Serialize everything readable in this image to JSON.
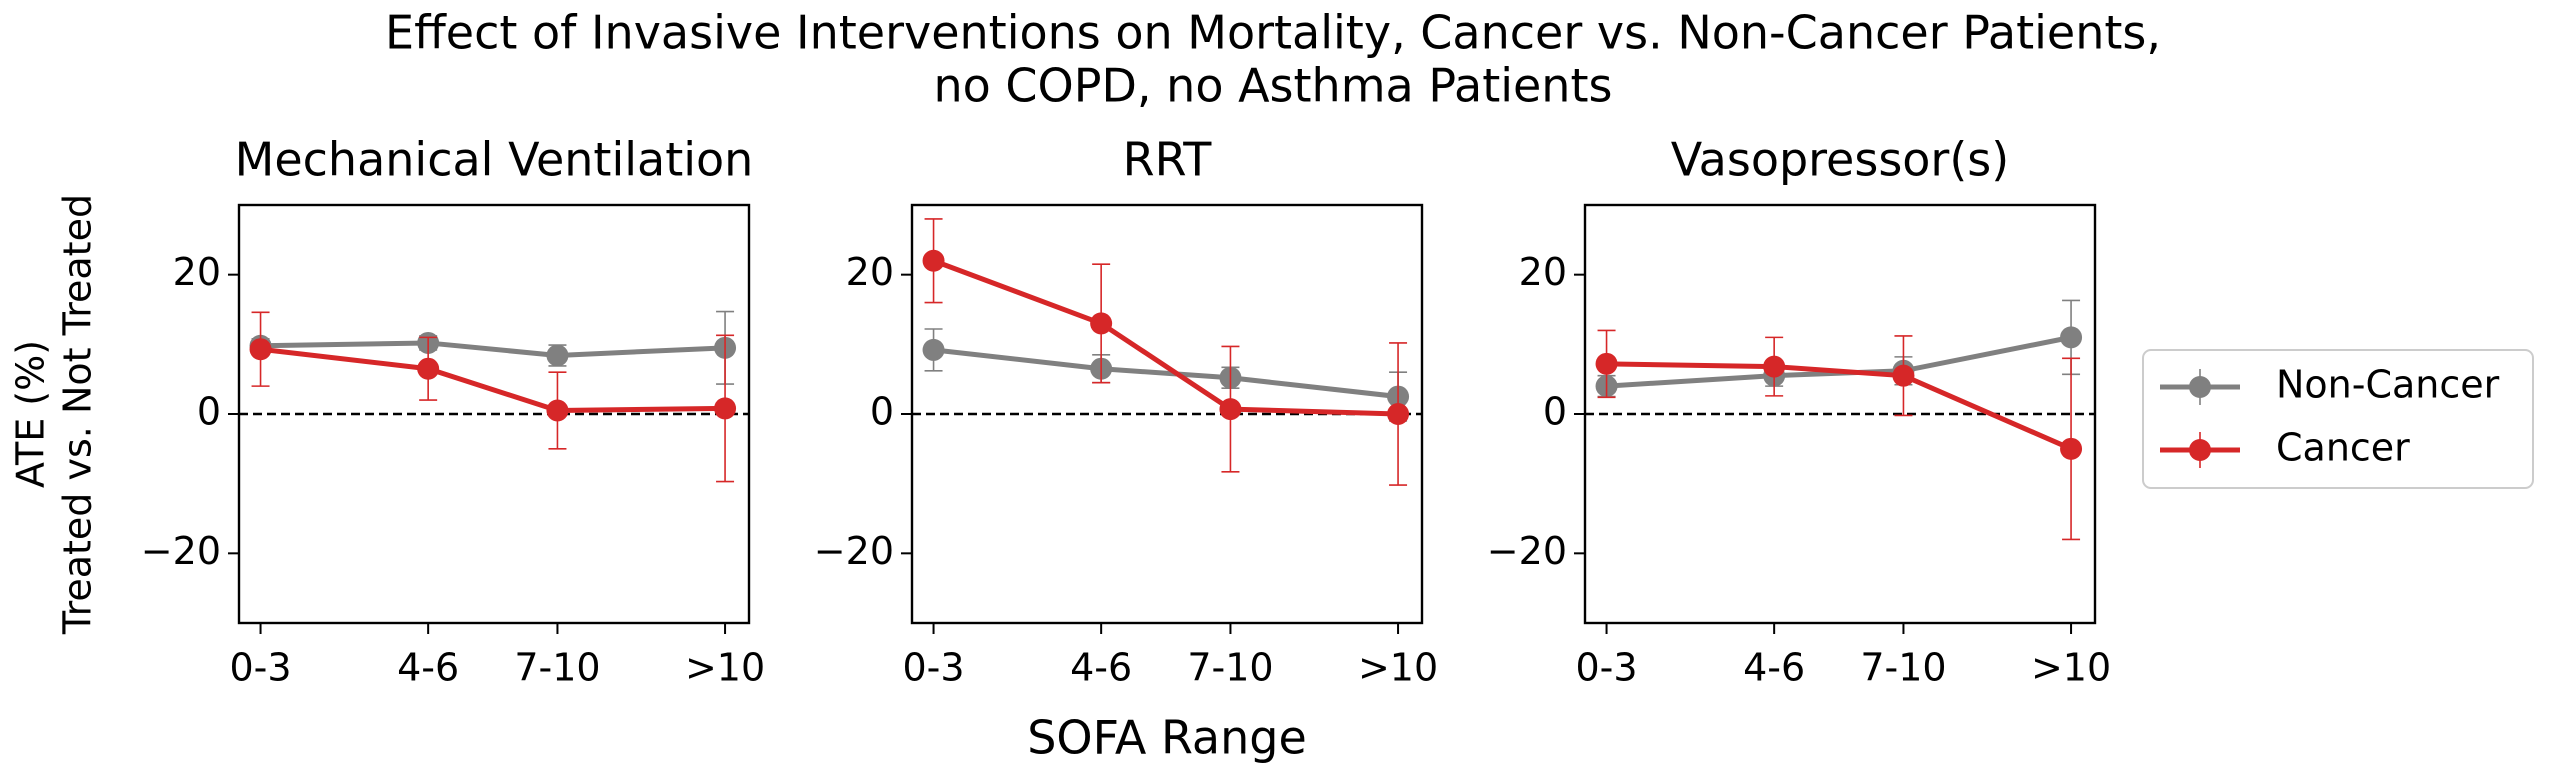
{
  "title": [
    "Effect of Invasive Interventions on Mortality, Cancer vs. Non-Cancer Patients,",
    "no COPD, no Asthma Patients"
  ],
  "ylabel": [
    "ATE (%)",
    "Treated vs. Not Treated"
  ],
  "xlabel": "SOFA Range",
  "legend_position": "right",
  "chart_data": [
    {
      "type": "line",
      "title": "Mechanical Ventilation",
      "x": [
        1.5,
        5,
        7.7,
        11.2
      ],
      "xlim": [
        1.05,
        11.7
      ],
      "xticks": [
        {
          "value": 1.5,
          "label": "0-3"
        },
        {
          "value": 5,
          "label": "4-6"
        },
        {
          "value": 7.7,
          "label": "7-10"
        },
        {
          "value": 11.2,
          "label": ">10"
        }
      ],
      "ylim": [
        -30,
        30
      ],
      "yticks": [
        {
          "value": -20,
          "label": "−20"
        },
        0,
        20
      ],
      "reference_line": 0,
      "series": [
        {
          "name": "Non-Cancer",
          "color": "#808080",
          "values": [
            9.8,
            10.2,
            8.4,
            9.5
          ],
          "errors": [
            1,
            1,
            1.5,
            5.2
          ]
        },
        {
          "name": "Cancer",
          "color": "#d62728",
          "values": [
            9.3,
            6.5,
            0.5,
            0.8
          ],
          "errors": [
            5.3,
            4.5,
            5.5,
            10.5
          ]
        }
      ]
    },
    {
      "type": "line",
      "title": "RRT",
      "x": [
        1.5,
        5,
        7.7,
        11.2
      ],
      "xlim": [
        1.05,
        11.7
      ],
      "xticks": [
        {
          "value": 1.5,
          "label": "0-3"
        },
        {
          "value": 5,
          "label": "4-6"
        },
        {
          "value": 7.7,
          "label": "7-10"
        },
        {
          "value": 11.2,
          "label": ">10"
        }
      ],
      "ylim": [
        -30,
        30
      ],
      "yticks": [
        {
          "value": -20,
          "label": "−20"
        },
        0,
        20
      ],
      "reference_line": 0,
      "series": [
        {
          "name": "Non-Cancer",
          "color": "#808080",
          "values": [
            9.2,
            6.5,
            5.2,
            2.5
          ],
          "errors": [
            3,
            2,
            1.5,
            3.5
          ]
        },
        {
          "name": "Cancer",
          "color": "#d62728",
          "values": [
            22,
            13,
            0.7,
            0
          ],
          "errors": [
            6,
            8.5,
            9,
            10.2
          ]
        }
      ]
    },
    {
      "type": "line",
      "title": "Vasopressor(s)",
      "x": [
        1.5,
        5,
        7.7,
        11.2
      ],
      "xlim": [
        1.05,
        11.7
      ],
      "xticks": [
        {
          "value": 1.5,
          "label": "0-3"
        },
        {
          "value": 5,
          "label": "4-6"
        },
        {
          "value": 7.7,
          "label": "7-10"
        },
        {
          "value": 11.2,
          "label": ">10"
        }
      ],
      "ylim": [
        -30,
        30
      ],
      "yticks": [
        {
          "value": -20,
          "label": "−20"
        },
        0,
        20
      ],
      "reference_line": 0,
      "series": [
        {
          "name": "Non-Cancer",
          "color": "#808080",
          "values": [
            4,
            5.5,
            6.2,
            11
          ],
          "errors": [
            1.5,
            1.5,
            2,
            5.3
          ]
        },
        {
          "name": "Cancer",
          "color": "#d62728",
          "values": [
            7.2,
            6.8,
            5.5,
            -5
          ],
          "errors": [
            4.8,
            4.2,
            5.7,
            13
          ]
        }
      ]
    }
  ]
}
